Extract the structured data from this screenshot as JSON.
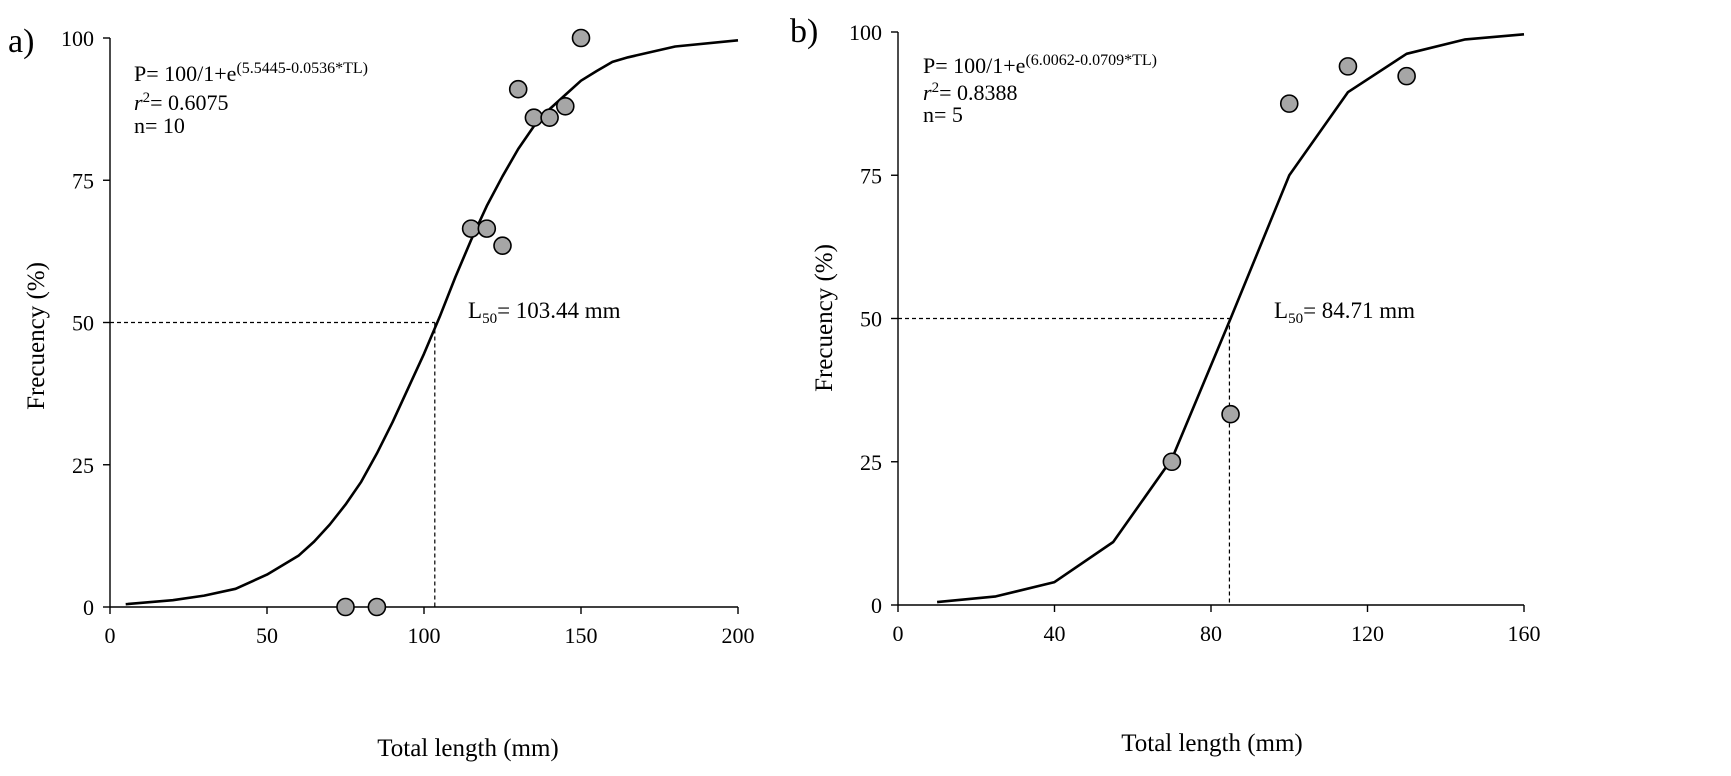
{
  "chart_data": [
    {
      "panel_label": "a)",
      "type": "scatter",
      "xlabel": "Total  length (mm)",
      "ylabel": "Frecuency (%)",
      "xlim": [
        0,
        200
      ],
      "ylim": [
        0,
        100
      ],
      "x_ticks": [
        "0",
        "50",
        "100",
        "150",
        "200"
      ],
      "y_ticks": [
        "0",
        "25",
        "50",
        "75",
        "100"
      ],
      "grid": false,
      "annotation": {
        "equation_prefix": "P= 100/1+e",
        "equation_exponent": "(5.5445-0.0536*TL)",
        "r2_symbol": "r",
        "r2_power": "2",
        "r2_value": "= 0.6075",
        "n_text": "n= 10",
        "l50_symbol": "L",
        "l50_subscript": "50",
        "l50_value": "=  103.44 mm"
      },
      "l50": 103.44,
      "series": [
        {
          "type": "scatter",
          "x": [
            75,
            85,
            115,
            120,
            125,
            130,
            135,
            140,
            145,
            150
          ],
          "y": [
            0,
            0,
            66.5,
            66.5,
            63.5,
            91,
            86,
            86,
            88,
            100
          ]
        },
        {
          "type": "line",
          "x": [
            5,
            20,
            30,
            40,
            50,
            60,
            65,
            70,
            75,
            80,
            85,
            90,
            95,
            100,
            105,
            110,
            115,
            120,
            125,
            130,
            135,
            140,
            145,
            150,
            155,
            160,
            165,
            180,
            200
          ],
          "y": [
            0.5,
            1.2,
            2.0,
            3.2,
            5.7,
            9.0,
            11.5,
            14.5,
            18.0,
            22.0,
            27.0,
            32.5,
            38.5,
            44.5,
            51.0,
            58.0,
            64.5,
            70.5,
            75.7,
            80.5,
            84.5,
            87.5,
            90.0,
            92.5,
            94.2,
            95.8,
            96.6,
            98.5,
            99.6
          ]
        }
      ],
      "colors": {
        "marker_fill": "#a6a6a6",
        "marker_stroke": "#000000",
        "curve": "#000000"
      }
    },
    {
      "panel_label": "b)",
      "type": "scatter",
      "xlabel": "Total  length (mm)",
      "ylabel": "Frecuency (%)",
      "xlim": [
        0,
        160
      ],
      "ylim": [
        0,
        100
      ],
      "x_ticks": [
        "0",
        "40",
        "80",
        "120",
        "160"
      ],
      "y_ticks": [
        "0",
        "25",
        "50",
        "75",
        "100"
      ],
      "grid": false,
      "annotation": {
        "equation_prefix": "P= 100/1+e",
        "equation_exponent": "(6.0062-0.0709*TL)",
        "r2_symbol": "r",
        "r2_power": "2",
        "r2_value": "= 0.8388",
        "n_text": "n= 5",
        "l50_symbol": "L",
        "l50_subscript": "50",
        "l50_value": "=   84.71 mm"
      },
      "l50": 84.71,
      "series": [
        {
          "type": "scatter",
          "x": [
            70,
            85,
            100,
            115,
            130
          ],
          "y": [
            25,
            33.3,
            87.5,
            94,
            92.3
          ]
        },
        {
          "type": "line",
          "x": [
            10,
            25,
            40,
            55,
            70,
            85,
            100,
            115,
            130,
            145,
            160
          ],
          "y": [
            0.5,
            1.5,
            4.0,
            11.0,
            25.5,
            50,
            75,
            89.5,
            96.2,
            98.7,
            99.6
          ]
        }
      ],
      "colors": {
        "marker_fill": "#a6a6a6",
        "marker_stroke": "#000000",
        "curve": "#000000"
      }
    }
  ]
}
